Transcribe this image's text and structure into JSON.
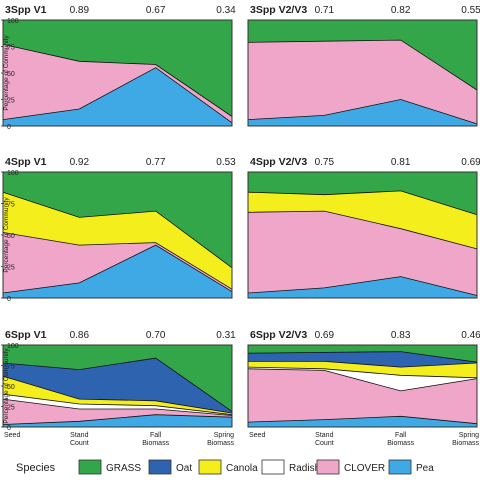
{
  "chart_data": [
    {
      "type": "area",
      "title": "3Spp V1",
      "ylabel": "Percentage of Community",
      "ylim": [
        0,
        100
      ],
      "categories": [
        "Seed",
        "Stand Count",
        "Fall Biomass",
        "Spring Biomass"
      ],
      "annotations": [
        "",
        "0.89",
        "0.67",
        "0.34"
      ],
      "series": [
        {
          "name": "Pea",
          "values": [
            6,
            16,
            55,
            3
          ]
        },
        {
          "name": "CLOVER",
          "values": [
            71,
            45,
            3,
            6
          ]
        },
        {
          "name": "GRASS",
          "values": [
            23,
            39,
            42,
            91
          ]
        }
      ]
    },
    {
      "type": "area",
      "title": "3Spp V2/V3",
      "ylabel": "",
      "ylim": [
        0,
        100
      ],
      "categories": [
        "Seed",
        "Stand Count",
        "Fall Biomass",
        "Spring Biomass"
      ],
      "annotations": [
        "",
        "0.71",
        "0.82",
        "0.55"
      ],
      "series": [
        {
          "name": "Pea",
          "values": [
            6,
            10,
            25,
            2
          ]
        },
        {
          "name": "CLOVER",
          "values": [
            73,
            70,
            56,
            32
          ]
        },
        {
          "name": "GRASS",
          "values": [
            21,
            20,
            19,
            66
          ]
        }
      ]
    },
    {
      "type": "area",
      "title": "4Spp V1",
      "ylabel": "Percentage of Community",
      "ylim": [
        0,
        100
      ],
      "categories": [
        "Seed",
        "Stand Count",
        "Fall Biomass",
        "Spring Biomass"
      ],
      "annotations": [
        "",
        "0.92",
        "0.77",
        "0.53"
      ],
      "series": [
        {
          "name": "Pea",
          "values": [
            4,
            12,
            42,
            5
          ]
        },
        {
          "name": "CLOVER",
          "values": [
            48,
            30,
            2,
            2
          ]
        },
        {
          "name": "Canola",
          "values": [
            32,
            22,
            25,
            17
          ]
        },
        {
          "name": "GRASS",
          "values": [
            16,
            36,
            31,
            76
          ]
        }
      ]
    },
    {
      "type": "area",
      "title": "4Spp V2/V3",
      "ylabel": "",
      "ylim": [
        0,
        100
      ],
      "categories": [
        "Seed",
        "Stand Count",
        "Fall Biomass",
        "Spring Biomass"
      ],
      "annotations": [
        "",
        "0.75",
        "0.81",
        "0.69"
      ],
      "series": [
        {
          "name": "Pea",
          "values": [
            4,
            8,
            17,
            2
          ]
        },
        {
          "name": "CLOVER",
          "values": [
            64,
            61,
            38,
            37
          ]
        },
        {
          "name": "Canola",
          "values": [
            16,
            13,
            30,
            27
          ]
        },
        {
          "name": "GRASS",
          "values": [
            16,
            18,
            15,
            34
          ]
        }
      ]
    },
    {
      "type": "area",
      "title": "6Spp V1",
      "ylabel": "Percentage of Community",
      "ylim": [
        0,
        100
      ],
      "categories": [
        "Seed",
        "Stand Count",
        "Fall Biomass",
        "Spring Biomass"
      ],
      "annotations": [
        "",
        "0.86",
        "0.70",
        "0.31"
      ],
      "series": [
        {
          "name": "Pea",
          "values": [
            3,
            7,
            15,
            12
          ]
        },
        {
          "name": "CLOVER",
          "values": [
            31,
            15,
            7,
            2
          ]
        },
        {
          "name": "Radish",
          "values": [
            6,
            6,
            4,
            1
          ]
        },
        {
          "name": "Canola",
          "values": [
            22,
            6,
            6,
            2
          ]
        },
        {
          "name": "Oat",
          "values": [
            16,
            36,
            52,
            2
          ]
        },
        {
          "name": "GRASS",
          "values": [
            22,
            30,
            16,
            81
          ]
        }
      ]
    },
    {
      "type": "area",
      "title": "6Spp V2/V3",
      "ylabel": "",
      "ylim": [
        0,
        100
      ],
      "categories": [
        "Seed",
        "Stand Count",
        "Fall Biomass",
        "Spring Biomass"
      ],
      "annotations": [
        "",
        "0.69",
        "0.83",
        "0.46"
      ],
      "series": [
        {
          "name": "Pea",
          "values": [
            6,
            9,
            13,
            4
          ]
        },
        {
          "name": "CLOVER",
          "values": [
            65,
            60,
            31,
            55
          ]
        },
        {
          "name": "Radish",
          "values": [
            2,
            2,
            19,
            1
          ]
        },
        {
          "name": "Canola",
          "values": [
            7,
            9,
            10,
            18
          ]
        },
        {
          "name": "Oat",
          "values": [
            10,
            11,
            19,
            1
          ]
        },
        {
          "name": "GRASS",
          "values": [
            10,
            9,
            8,
            21
          ]
        }
      ]
    }
  ],
  "legend": {
    "title": "Species",
    "position": "bottom",
    "items": [
      {
        "name": "GRASS",
        "color": "#33A64A"
      },
      {
        "name": "Oat",
        "color": "#2E63AF"
      },
      {
        "name": "Canola",
        "color": "#F4EE1C"
      },
      {
        "name": "Radish",
        "color": "#FFFFFF"
      },
      {
        "name": "CLOVER",
        "color": "#F0A6C8"
      },
      {
        "name": "Pea",
        "color": "#3FA9E6"
      }
    ]
  },
  "y_ticks": [
    "0",
    "25",
    "50",
    "75",
    "100"
  ]
}
